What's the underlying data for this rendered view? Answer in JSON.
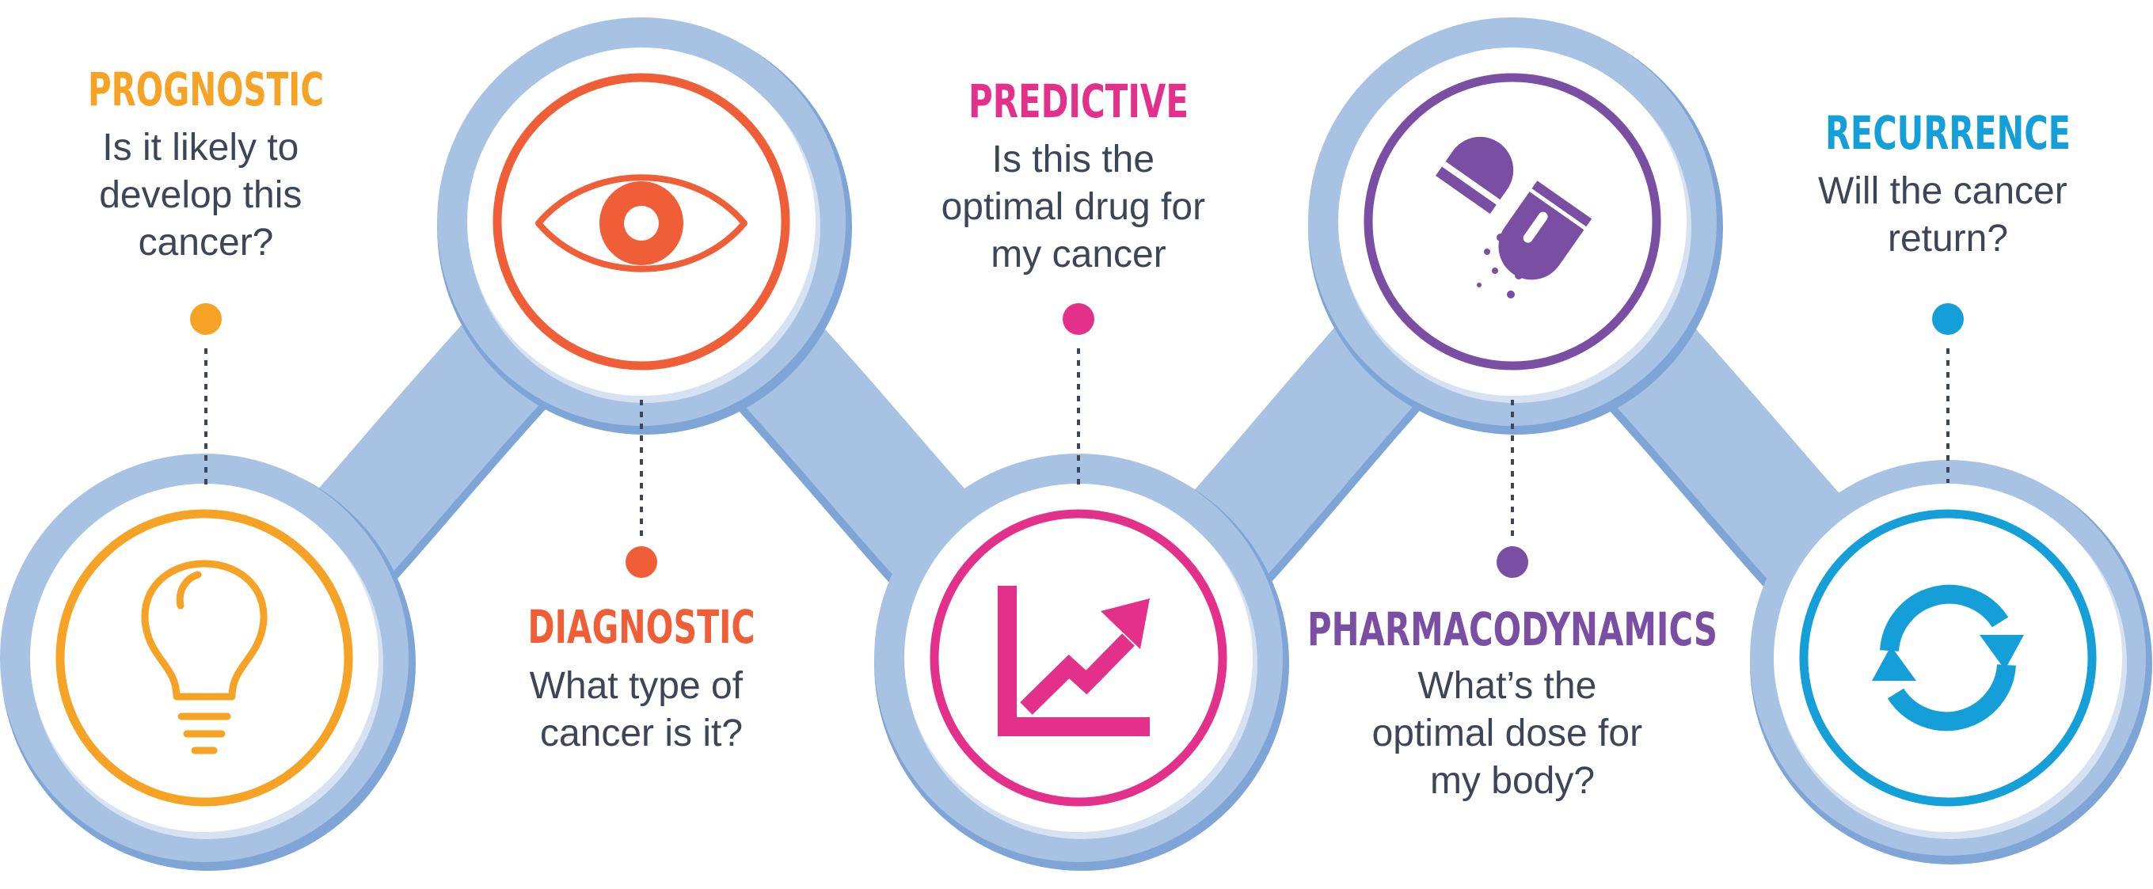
{
  "colors": {
    "connector": "#a8c2e4",
    "connector_shadow": "#7fa5d6",
    "ring_inner": "#eef3fa",
    "text": "#3d4657",
    "prognostic": "#f6a325",
    "diagnostic": "#ef5e36",
    "predictive": "#e3318b",
    "pharmacodynamics": "#7a4ea3",
    "recurrence": "#149fd9"
  },
  "stages": [
    {
      "title": "PROGNOSTIC",
      "question": [
        "Is it likely to",
        "develop this",
        "cancer?"
      ],
      "icon": "lightbulb-icon"
    },
    {
      "title": "DIAGNOSTIC",
      "question": [
        "What type of",
        "cancer is it?"
      ],
      "icon": "eye-icon"
    },
    {
      "title": "PREDICTIVE",
      "question": [
        "Is this the",
        "optimal drug for",
        "my cancer"
      ],
      "icon": "trend-up-chart-icon"
    },
    {
      "title": "PHARMACODYNAMICS",
      "question": [
        "What’s the",
        "optimal dose for",
        "my body?"
      ],
      "icon": "capsule-icon"
    },
    {
      "title": "RECURRENCE",
      "question": [
        "Will the cancer",
        "return?"
      ],
      "icon": "refresh-arrows-icon"
    }
  ]
}
